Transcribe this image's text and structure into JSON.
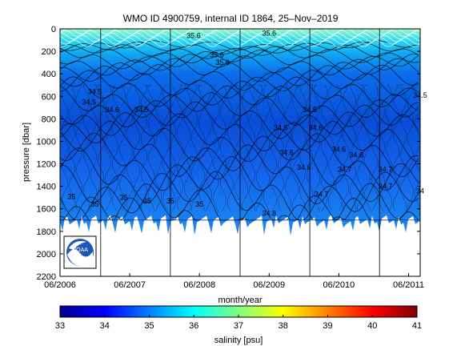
{
  "chart_data": {
    "type": "heatmap",
    "title": "WMO ID 4900759, internal ID 1864, 25–Nov–2019",
    "xlabel": "month/year",
    "ylabel": "pressure [dbar]",
    "x_tick_labels": [
      "06/2006",
      "06/2007",
      "06/2008",
      "06/2009",
      "06/2010",
      "06/2011"
    ],
    "y_tick_labels": [
      "0",
      "200",
      "400",
      "600",
      "800",
      "1000",
      "1200",
      "1400",
      "1600",
      "1800",
      "2000",
      "2200"
    ],
    "y_ticks": [
      0,
      200,
      400,
      600,
      800,
      1000,
      1200,
      1400,
      1600,
      1800,
      2000,
      2200
    ],
    "ylim": [
      2200,
      0
    ],
    "y_reversed": true,
    "xlim": [
      "2006-06",
      "2011-08"
    ],
    "year_dividers": [
      "2007-01",
      "2008-01",
      "2009-01",
      "2010-01",
      "2011-01"
    ],
    "max_profile_depth_dbar": 1700,
    "colorbar": {
      "label": "salinity [psu]",
      "min": 33,
      "max": 41,
      "tick_labels": [
        "33",
        "34",
        "35",
        "36",
        "37",
        "38",
        "39",
        "40",
        "41"
      ],
      "colormap": "jet"
    },
    "contour_labels": [
      {
        "text": "35.6",
        "x": "2008-05",
        "y": 60
      },
      {
        "text": "35.6",
        "x": "2009-06",
        "y": 40
      },
      {
        "text": "35.6",
        "x": "2008-09",
        "y": 230
      },
      {
        "text": "35.6",
        "x": "2008-10",
        "y": 300
      },
      {
        "text": "34.5",
        "x": "2006-12",
        "y": 560
      },
      {
        "text": "34.5",
        "x": "2006-11",
        "y": 650
      },
      {
        "text": "34.6",
        "x": "2007-03",
        "y": 720
      },
      {
        "text": "34.5",
        "x": "2007-08",
        "y": 720
      },
      {
        "text": "34.5",
        "x": "2009-08",
        "y": 880
      },
      {
        "text": "34.5",
        "x": "2010-01",
        "y": 720
      },
      {
        "text": "34.5",
        "x": "2011-08",
        "y": 590
      },
      {
        "text": "34.6",
        "x": "2010-02",
        "y": 880
      },
      {
        "text": "34.6",
        "x": "2009-09",
        "y": 1100
      },
      {
        "text": "34.6",
        "x": "2009-12",
        "y": 1230
      },
      {
        "text": "34.6",
        "x": "2010-06",
        "y": 1070
      },
      {
        "text": "34.6",
        "x": "2010-09",
        "y": 1120
      },
      {
        "text": "34.7",
        "x": "2010-07",
        "y": 1250
      },
      {
        "text": "34.7",
        "x": "2011-02",
        "y": 1250
      },
      {
        "text": "34.7",
        "x": "2010-03",
        "y": 1470
      },
      {
        "text": "34.7",
        "x": "2011-02",
        "y": 1400
      },
      {
        "text": "34.8",
        "x": "2009-06",
        "y": 1640
      },
      {
        "text": "35",
        "x": "2006-08",
        "y": 1490
      },
      {
        "text": "35",
        "x": "2006-12",
        "y": 1560
      },
      {
        "text": "35",
        "x": "2007-05",
        "y": 1500
      },
      {
        "text": "35",
        "x": "2007-09",
        "y": 1530
      },
      {
        "text": "35",
        "x": "2008-01",
        "y": 1530
      },
      {
        "text": "35",
        "x": "2008-06",
        "y": 1560
      },
      {
        "text": "34",
        "x": "2011-08",
        "y": 1440
      }
    ]
  }
}
